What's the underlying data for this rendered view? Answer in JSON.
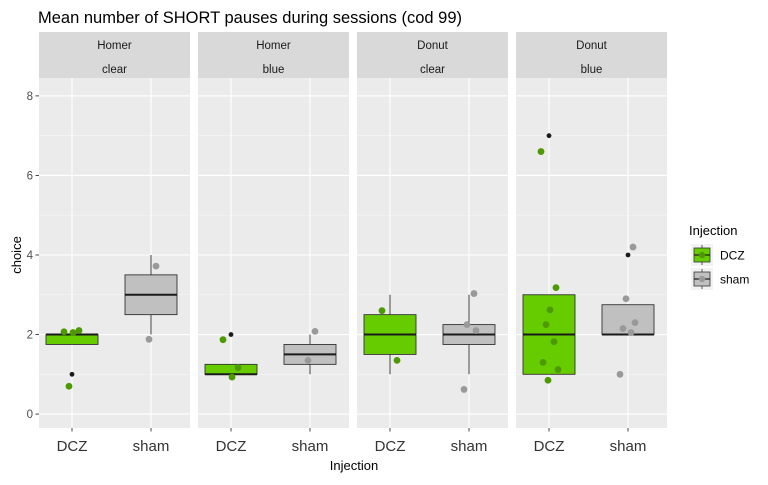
{
  "chart_data": {
    "type": "boxplot",
    "title": "Mean number of SHORT pauses during sessions (cod 99)",
    "xlabel": "Injection",
    "ylabel": "choice",
    "ylim": [
      -0.35,
      8.45
    ],
    "yticks": [
      0,
      2,
      4,
      6,
      8
    ],
    "grid": true,
    "categories": [
      "DCZ",
      "sham"
    ],
    "legend": {
      "title": "Injection",
      "placement": "right",
      "items": [
        {
          "label": "DCZ",
          "fill": "#66CC00",
          "point": "#4C9900"
        },
        {
          "label": "sham",
          "fill": "#C0C0C0",
          "point": "#999999"
        }
      ]
    },
    "panels": [
      {
        "strip_top": "Homer",
        "strip_bottom": "clear",
        "groups": [
          {
            "category": "DCZ",
            "q1": 1.75,
            "median": 2.0,
            "q3": 2.0,
            "whisker_low": 1.75,
            "whisker_high": 2.0,
            "outliers": [
              1.0
            ],
            "points": [
              2.07,
              2.1,
              2.05,
              0.7
            ]
          },
          {
            "category": "sham",
            "q1": 2.5,
            "median": 3.0,
            "q3": 3.5,
            "whisker_low": 2.0,
            "whisker_high": 4.0,
            "outliers": [],
            "points": [
              3.72,
              1.88
            ]
          }
        ]
      },
      {
        "strip_top": "Homer",
        "strip_bottom": "blue",
        "groups": [
          {
            "category": "DCZ",
            "q1": 1.0,
            "median": 1.0,
            "q3": 1.25,
            "whisker_low": 1.0,
            "whisker_high": 1.25,
            "outliers": [
              2.0
            ],
            "points": [
              1.87,
              1.17,
              0.93
            ]
          },
          {
            "category": "sham",
            "q1": 1.25,
            "median": 1.5,
            "q3": 1.75,
            "whisker_low": 1.0,
            "whisker_high": 2.0,
            "outliers": [],
            "points": [
              2.08,
              1.35
            ]
          }
        ]
      },
      {
        "strip_top": "Donut",
        "strip_bottom": "clear",
        "groups": [
          {
            "category": "DCZ",
            "q1": 1.5,
            "median": 2.0,
            "q3": 2.5,
            "whisker_low": 1.0,
            "whisker_high": 3.0,
            "outliers": [],
            "points": [
              2.6,
              1.35
            ]
          },
          {
            "category": "sham",
            "q1": 1.75,
            "median": 2.0,
            "q3": 2.25,
            "whisker_low": 1.0,
            "whisker_high": 3.0,
            "outliers": [],
            "points": [
              3.03,
              2.25,
              2.1,
              0.62
            ]
          }
        ]
      },
      {
        "strip_top": "Donut",
        "strip_bottom": "blue",
        "groups": [
          {
            "category": "DCZ",
            "q1": 1.0,
            "median": 2.0,
            "q3": 3.0,
            "whisker_low": 1.0,
            "whisker_high": 3.0,
            "outliers": [
              7.0
            ],
            "points": [
              6.6,
              3.18,
              2.62,
              2.25,
              1.82,
              1.3,
              1.12,
              0.85
            ]
          },
          {
            "category": "sham",
            "q1": 2.0,
            "median": 2.0,
            "q3": 2.75,
            "whisker_low": 2.0,
            "whisker_high": 2.75,
            "outliers": [
              4.0
            ],
            "points": [
              4.2,
              2.9,
              2.3,
              2.15,
              2.05,
              1.0
            ]
          }
        ]
      }
    ]
  }
}
